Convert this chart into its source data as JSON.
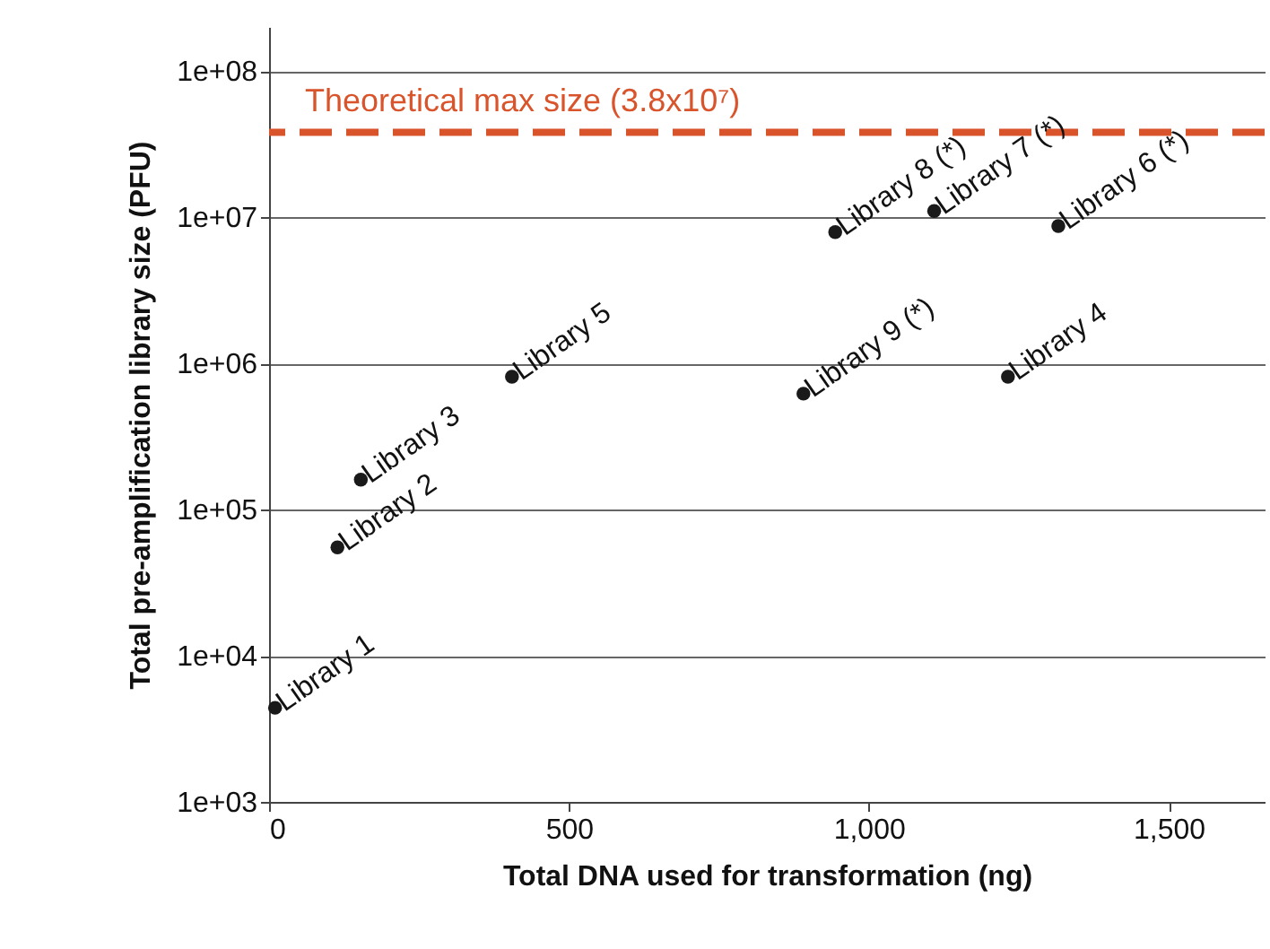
{
  "chart_data": {
    "type": "scatter",
    "xlabel": "Total DNA used for transformation (ng)",
    "ylabel": "Total pre-amplification library size (PFU)",
    "series": [
      {
        "color": "#1a1a1a",
        "x": [
          10,
          114,
          153,
          405,
          891,
          944,
          1109,
          1232,
          1316
        ],
        "values": [
          4400,
          55000,
          160000,
          810000,
          620000,
          7900000,
          11000000,
          810000,
          8700000
        ]
      }
    ],
    "marker": "circle",
    "log": "y",
    "xlim": [
      0,
      1660
    ],
    "xticks": [
      0,
      500,
      {
        "value": 1000,
        "label": "1,000"
      },
      {
        "value": 1500,
        "label": "1,500"
      }
    ],
    "ylim": [
      1000,
      200000000
    ],
    "yticks": [
      {
        "value": 1000,
        "label": "1e+03"
      },
      {
        "value": 10000,
        "label": "1e+04"
      },
      {
        "value": 100000,
        "label": "1e+05"
      },
      {
        "value": 1000000,
        "label": "1e+06"
      },
      {
        "value": 10000000,
        "label": "1e+07"
      },
      {
        "value": 100000000,
        "label": "1e+08"
      }
    ],
    "grid": "y",
    "ref_lines": [
      {
        "axis": "y",
        "value": 38000000,
        "label": "Theoretical max size (3.8x10⁷)",
        "color": "#d9532b",
        "line_style": "dashed"
      }
    ],
    "annotations": [
      {
        "text": "Library 1",
        "x": 10,
        "y": 4400
      },
      {
        "text": "Library 2",
        "x": 114,
        "y": 55000
      },
      {
        "text": "Library 3",
        "x": 153,
        "y": 160000
      },
      {
        "text": "Library 5",
        "x": 405,
        "y": 810000
      },
      {
        "text": "Library 9 (*)",
        "x": 891,
        "y": 620000
      },
      {
        "text": "Library 8 (*)",
        "x": 944,
        "y": 7900000
      },
      {
        "text": "Library 7 (*)",
        "x": 1109,
        "y": 11000000
      },
      {
        "text": "Library 4",
        "x": 1232,
        "y": 810000
      },
      {
        "text": "Library 6 (*)",
        "x": 1316,
        "y": 8700000
      }
    ]
  }
}
